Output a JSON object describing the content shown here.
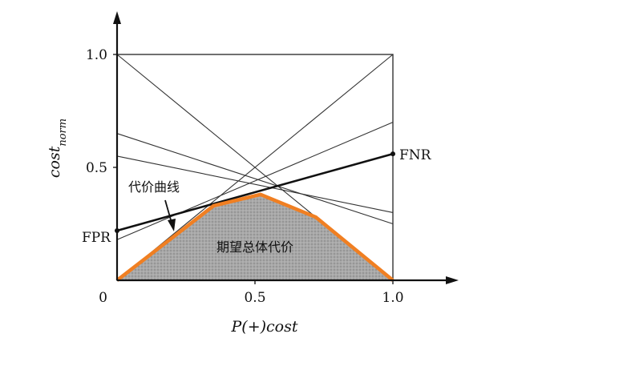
{
  "chart_data": {
    "type": "line",
    "title": "",
    "xlabel": "P(+)cost",
    "ylabel_base": "cost",
    "ylabel_sub": "norm",
    "xlim": [
      0,
      1
    ],
    "ylim": [
      0,
      1
    ],
    "origin_label": "0",
    "x_ticks": [
      {
        "value": 0.5,
        "label": "0.5"
      },
      {
        "value": 1.0,
        "label": "1.0"
      }
    ],
    "y_ticks": [
      {
        "value": 0.5,
        "label": "0.5"
      },
      {
        "value": 1.0,
        "label": "1.0"
      }
    ],
    "thin_lines": [
      {
        "y0": 0.0,
        "y1": 1.0
      },
      {
        "y0": 1.0,
        "y1": 0.0
      },
      {
        "y0": 0.65,
        "y1": 0.25
      },
      {
        "y0": 0.55,
        "y1": 0.3
      },
      {
        "y0": 0.18,
        "y1": 0.7
      }
    ],
    "highlight_line": {
      "y0": 0.22,
      "y1": 0.56,
      "left_label": "FPR",
      "right_label": "FNR"
    },
    "lower_envelope": [
      {
        "x": 0.0,
        "y": 0.0
      },
      {
        "x": 0.35,
        "y": 0.33
      },
      {
        "x": 0.52,
        "y": 0.38
      },
      {
        "x": 0.72,
        "y": 0.28
      },
      {
        "x": 1.0,
        "y": 0.0
      }
    ],
    "annotations": {
      "curve_label": "代价曲线",
      "area_label": "期望总体代价"
    },
    "colors": {
      "envelope": "#f07f22",
      "area_fill": "#a8a8a8",
      "lines": "#333333",
      "highlight": "#111111"
    }
  }
}
